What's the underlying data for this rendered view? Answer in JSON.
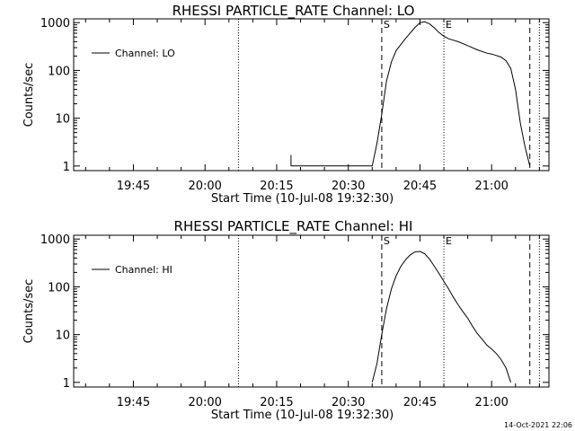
{
  "footer": {
    "timestamp": "14-Oct-2021 22:06"
  },
  "chart_data": [
    {
      "type": "line",
      "title": "RHESSI PARTICLE_RATE Channel: LO",
      "xlabel": "Start Time (10-Jul-08 19:32:30)",
      "ylabel": "Counts/sec",
      "yscale": "log",
      "xlim": [
        "19:32:30",
        "21:12:00"
      ],
      "ylim": [
        0.8,
        1200
      ],
      "x_ticks": [
        "19:45",
        "20:00",
        "20:15",
        "20:30",
        "20:45",
        "21:00"
      ],
      "y_ticks": [
        "1",
        "10",
        "100",
        "1000"
      ],
      "legend": {
        "position": "top-left",
        "entries": [
          "Channel: LO"
        ]
      },
      "markers": [
        {
          "time": "20:07",
          "style": "dotted",
          "label": ""
        },
        {
          "time": "20:37",
          "style": "dashed",
          "label": "S"
        },
        {
          "time": "20:50",
          "style": "dotted",
          "label": "E"
        },
        {
          "time": "21:08",
          "style": "dashed",
          "label": ""
        },
        {
          "time": "21:10",
          "style": "dotted",
          "label": ""
        }
      ],
      "series": [
        {
          "name": "Channel: LO",
          "x": [
            "20:18",
            "20:18",
            "20:18",
            "20:35",
            "20:36",
            "20:37",
            "20:38",
            "20:39",
            "20:40",
            "20:42",
            "20:44",
            "20:45",
            "20:46",
            "20:47",
            "20:48",
            "20:49",
            "20:50",
            "20:51",
            "20:53",
            "20:55",
            "20:57",
            "20:59",
            "21:00",
            "21:01",
            "21:02",
            "21:03",
            "21:04",
            "21:05",
            "21:06",
            "21:07",
            "21:08"
          ],
          "y": [
            1,
            1.7,
            1,
            1,
            3,
            12,
            60,
            150,
            260,
            470,
            800,
            1000,
            1040,
            940,
            780,
            620,
            520,
            460,
            400,
            330,
            270,
            230,
            220,
            205,
            190,
            160,
            110,
            40,
            8,
            2.5,
            1
          ]
        }
      ]
    },
    {
      "type": "line",
      "title": "RHESSI PARTICLE_RATE Channel: HI",
      "xlabel": "Start Time (10-Jul-08 19:32:30)",
      "ylabel": "Counts/sec",
      "yscale": "log",
      "xlim": [
        "19:32:30",
        "21:12:00"
      ],
      "ylim": [
        0.8,
        1200
      ],
      "x_ticks": [
        "19:45",
        "20:00",
        "20:15",
        "20:30",
        "20:45",
        "21:00"
      ],
      "y_ticks": [
        "1",
        "10",
        "100",
        "1000"
      ],
      "legend": {
        "position": "top-left",
        "entries": [
          "Channel: HI"
        ]
      },
      "markers": [
        {
          "time": "20:07",
          "style": "dotted",
          "label": ""
        },
        {
          "time": "20:37",
          "style": "dashed",
          "label": "S"
        },
        {
          "time": "20:50",
          "style": "dotted",
          "label": "E"
        },
        {
          "time": "21:08",
          "style": "dashed",
          "label": ""
        },
        {
          "time": "21:10",
          "style": "dotted",
          "label": ""
        }
      ],
      "series": [
        {
          "name": "Channel: HI",
          "x": [
            "20:35",
            "20:36",
            "20:37",
            "20:38",
            "20:39",
            "20:40",
            "20:41",
            "20:42",
            "20:43",
            "20:44",
            "20:45",
            "20:46",
            "20:47",
            "20:48",
            "20:49",
            "20:50",
            "20:51",
            "20:52",
            "20:53",
            "20:54",
            "20:55",
            "20:56",
            "20:57",
            "20:58",
            "20:59",
            "21:00",
            "21:01",
            "21:02",
            "21:03",
            "21:04"
          ],
          "y": [
            1,
            2.5,
            10,
            35,
            90,
            170,
            270,
            370,
            470,
            540,
            550,
            490,
            380,
            270,
            190,
            130,
            90,
            60,
            42,
            30,
            22,
            15,
            10.5,
            8,
            6,
            5,
            4,
            3,
            2,
            1
          ]
        }
      ]
    }
  ]
}
